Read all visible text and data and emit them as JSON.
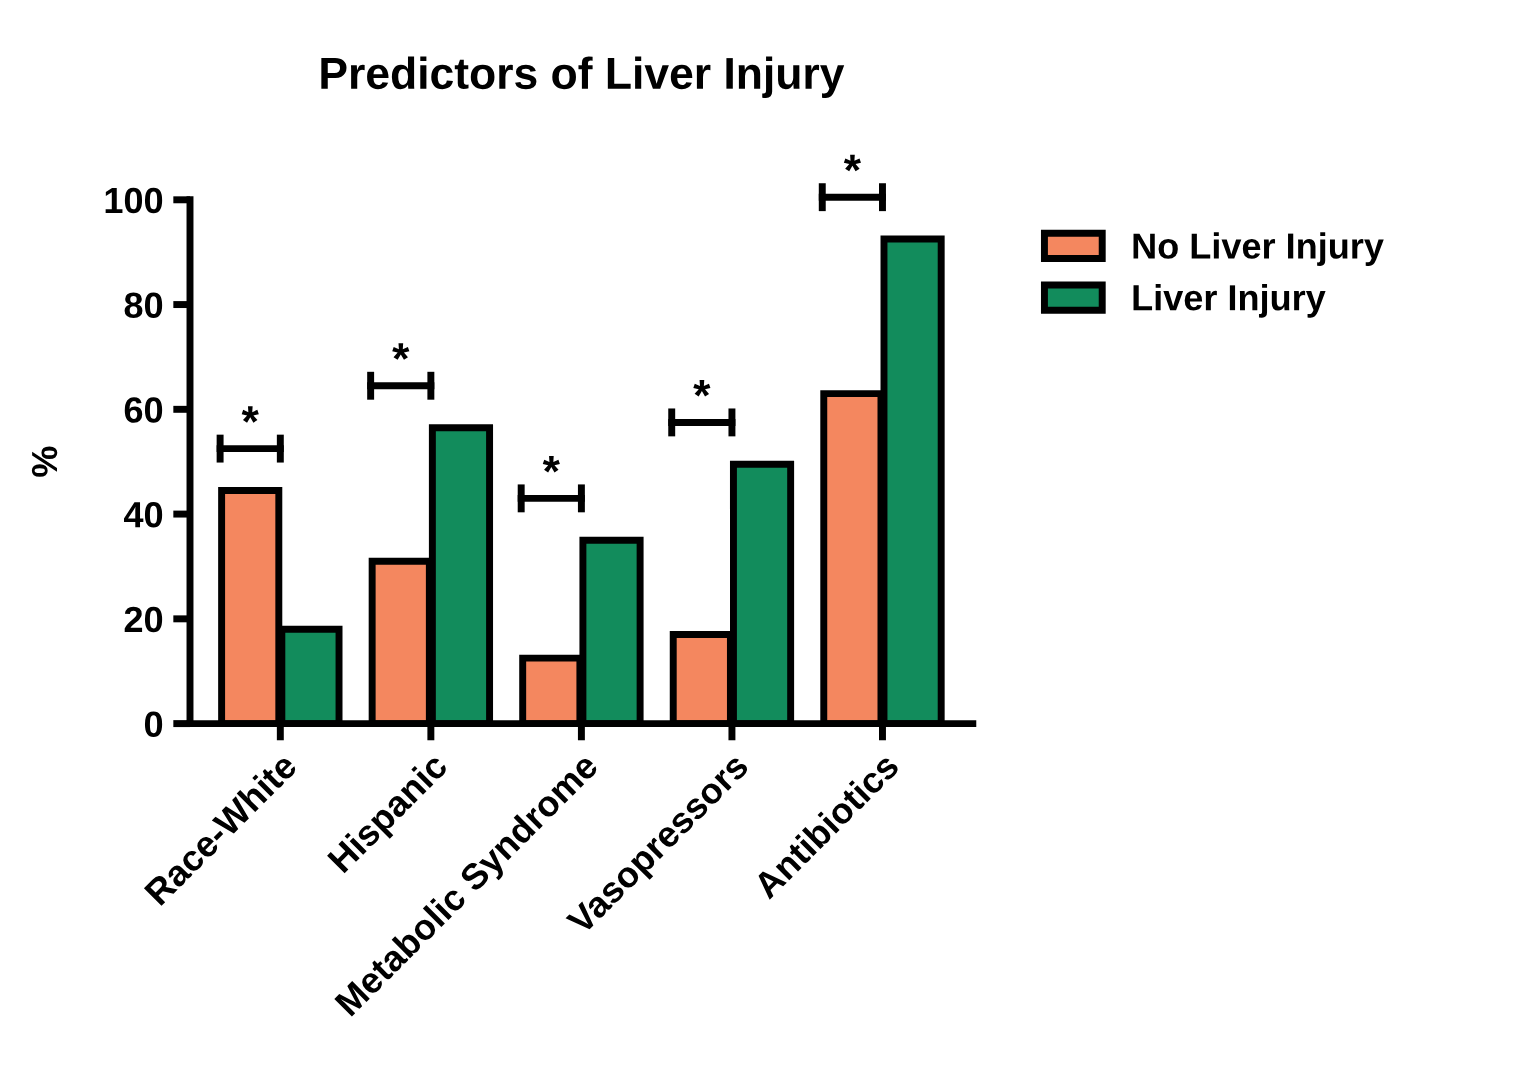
{
  "chart_data": {
    "type": "bar",
    "title": "Predictors of Liver Injury",
    "ylabel": "%",
    "categories": [
      "Race-White",
      "Hispanic",
      "Metabolic Syndrome",
      "Vasopressors",
      "Antibiotics"
    ],
    "series": [
      {
        "name": "No Liver Injury",
        "color": "#f4875f",
        "values": [
          44.5,
          31,
          12.5,
          17,
          63
        ]
      },
      {
        "name": "Liver Injury",
        "color": "#128c5c",
        "values": [
          18,
          56.5,
          35,
          49.5,
          92.5
        ]
      }
    ],
    "ylim": [
      0,
      100
    ],
    "yticks": [
      0,
      20,
      40,
      60,
      80,
      100
    ],
    "grid": false,
    "legend": "top right",
    "annotations": [
      "*",
      "*",
      "*",
      "*",
      "*"
    ]
  }
}
